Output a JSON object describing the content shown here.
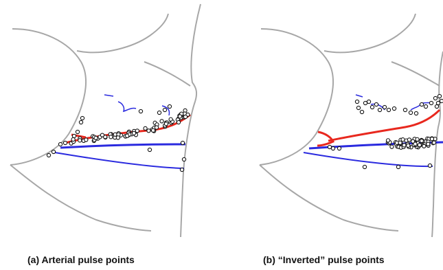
{
  "panels": [
    {
      "id": "a",
      "caption": "(a) Arterial pulse points",
      "artery_color": "#e8281e",
      "vein_color": "#2a2adf",
      "outline_color": "#a7a7a7",
      "point_stroke": "#111111"
    },
    {
      "id": "b",
      "caption": "(b) “Inverted” pulse points",
      "artery_color": "#e8281e",
      "vein_color": "#2a2adf",
      "outline_color": "#a7a7a7",
      "point_stroke": "#111111"
    }
  ]
}
